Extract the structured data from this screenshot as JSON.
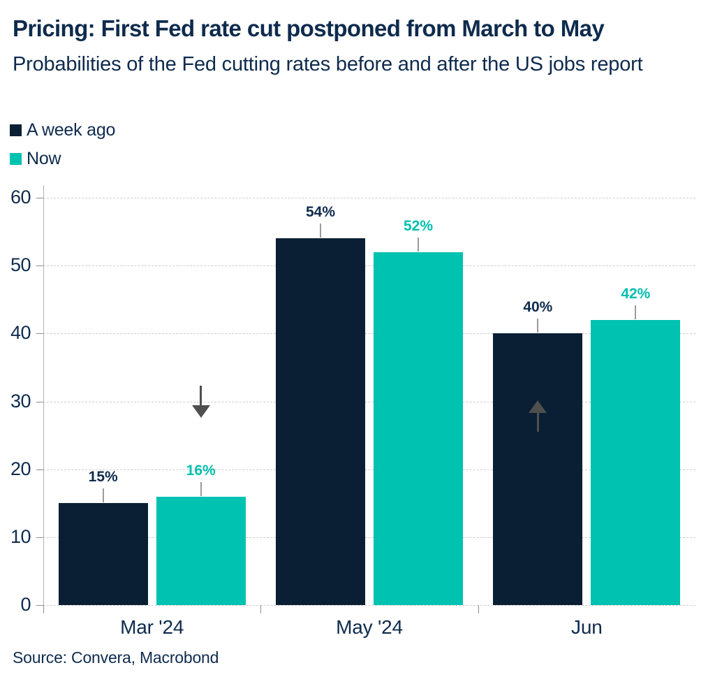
{
  "header": {
    "title": "Pricing: First Fed rate cut postponed from March to May",
    "subtitle": "Probabilities of the Fed cutting rates before and after the US jobs report"
  },
  "legend": {
    "position": "top-left",
    "items": [
      {
        "label": "A week ago",
        "color": "#0a1f33"
      },
      {
        "label": "Now",
        "color": "#00c2b1"
      }
    ]
  },
  "footer": {
    "source": "Source: Convera, Macrobond"
  },
  "colors": {
    "text_navy": "#0e2b4d",
    "bar_navy": "#0a1f33",
    "bar_teal": "#00c2b1",
    "teal_label": "#00bfae",
    "gridline": "#cdcdcd",
    "axis": "#b3b3b3",
    "tick": "#8f8f8f",
    "callout": "#9b9b9b",
    "arrow": "#4f4f4f",
    "background": "#ffffff"
  },
  "chart_data": {
    "type": "bar",
    "categories": [
      "Mar '24",
      "May '24",
      "Jun"
    ],
    "series": [
      {
        "name": "A week ago",
        "color": "#0a1f33",
        "label_color": "#0e2b4d",
        "values": [
          15,
          54,
          40
        ],
        "labels": [
          "15%",
          "54%",
          "40%"
        ]
      },
      {
        "name": "Now",
        "color": "#00c2b1",
        "label_color": "#00bfae",
        "values": [
          16,
          52,
          42
        ],
        "labels": [
          "16%",
          "52%",
          "42%"
        ]
      }
    ],
    "xlabel": "",
    "ylabel": "",
    "ylim": [
      0,
      60
    ],
    "ytick_step": 10,
    "yticks": [
      0,
      10,
      20,
      30,
      40,
      50,
      60
    ],
    "grid": "horizontal-dashed",
    "legend_position": "top-left",
    "annotations": [
      {
        "type": "arrow",
        "direction": "down",
        "category": "Mar '24",
        "series": "Now",
        "from_value": 32.3,
        "to_value": 27.6
      },
      {
        "type": "arrow",
        "direction": "up",
        "category": "Jun",
        "series": "A week ago",
        "from_value": 25.5,
        "to_value": 30.2
      }
    ]
  }
}
